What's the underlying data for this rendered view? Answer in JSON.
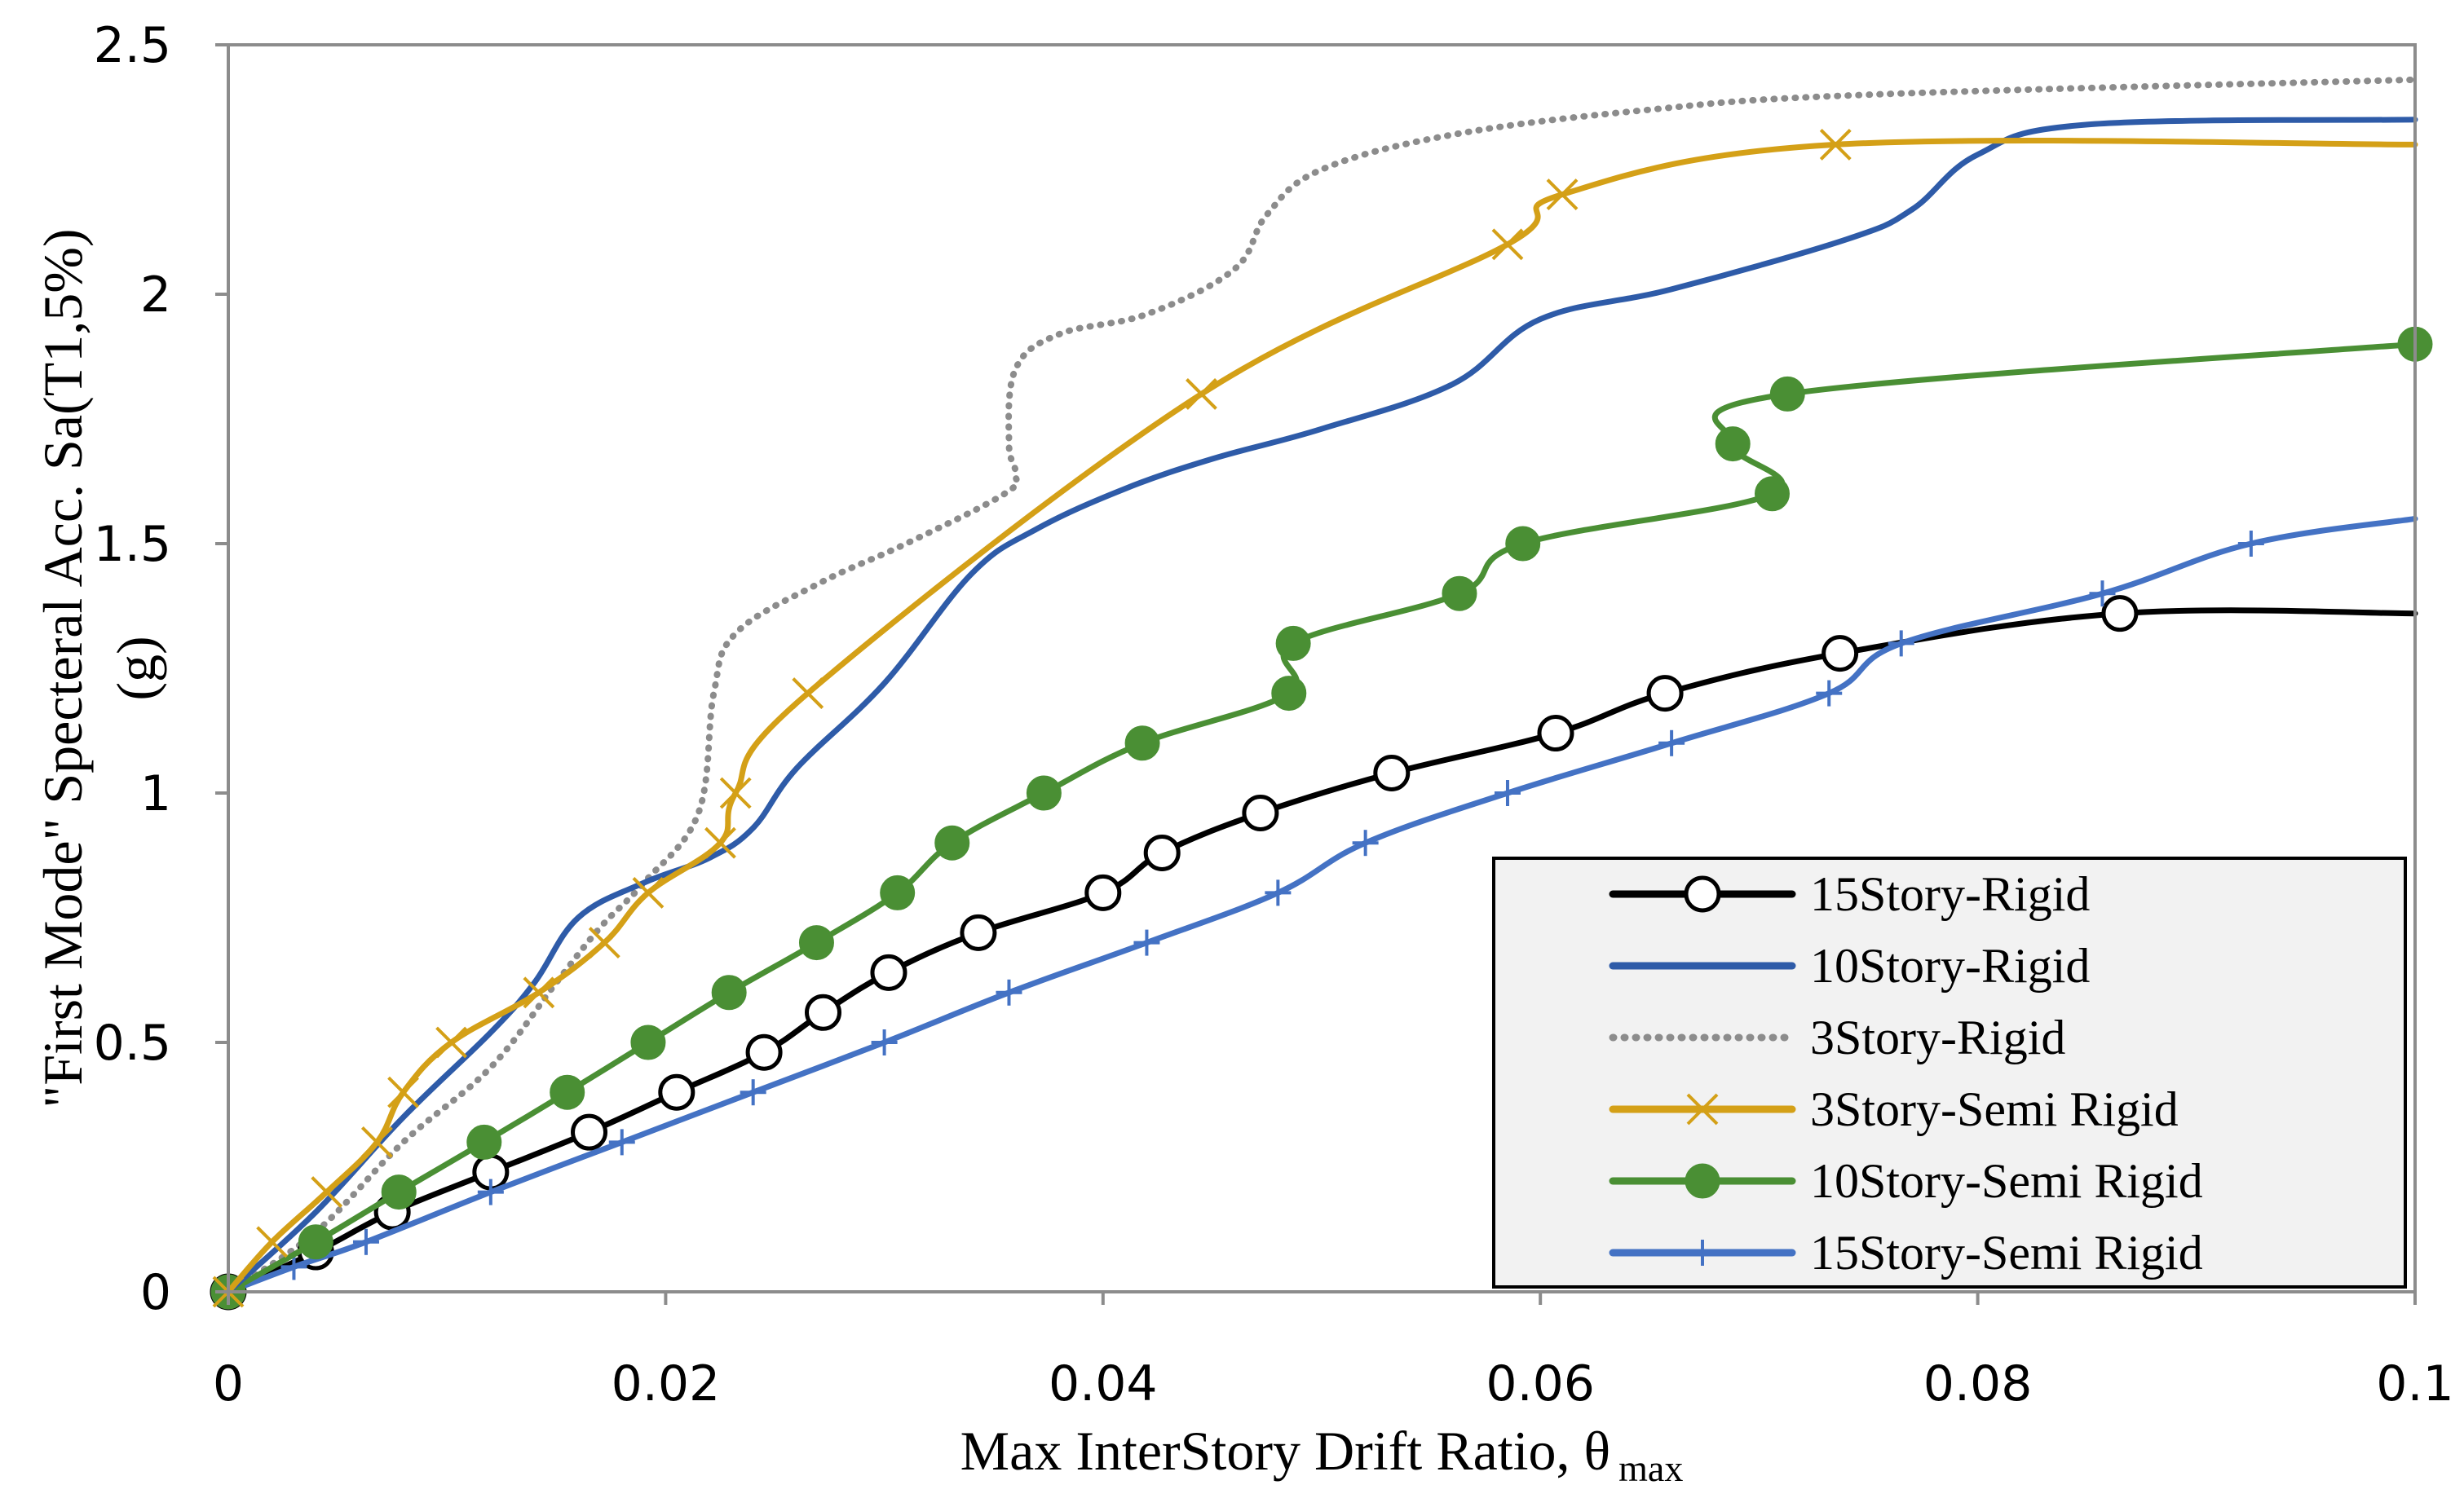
{
  "chart_data": {
    "type": "line",
    "title": "",
    "xlabel": "Max InterStory Drift Ratio, θ",
    "xlabel_subscript": "max",
    "ylabel_line1": "\"First Mode\" Specteral Acc. Sa(T1,5%)",
    "ylabel_line2": "(g)",
    "xlim": [
      0,
      0.1
    ],
    "ylim": [
      0,
      2.5
    ],
    "xticks": [
      0,
      0.02,
      0.04,
      0.06,
      0.08,
      0.1
    ],
    "xtick_labels": [
      "0",
      "0.02",
      "0.04",
      "0.06",
      "0.08",
      "0.1"
    ],
    "yticks": [
      0,
      0.5,
      1,
      1.5,
      2,
      2.5
    ],
    "ytick_labels": [
      "0",
      "0.5",
      "1",
      "1.5",
      "2",
      "2.5"
    ],
    "grid": false,
    "legend_position": "bottom-right",
    "series": [
      {
        "name": "15Story-Rigid",
        "color": "#000000",
        "marker": "open-circle",
        "dash": "solid",
        "points": [
          [
            0,
            0
          ],
          [
            0.004,
            0.08
          ],
          [
            0.0075,
            0.16
          ],
          [
            0.012,
            0.24
          ],
          [
            0.0165,
            0.32
          ],
          [
            0.0205,
            0.4
          ],
          [
            0.0245,
            0.48
          ],
          [
            0.0272,
            0.56
          ],
          [
            0.0302,
            0.64
          ],
          [
            0.0343,
            0.72
          ],
          [
            0.04,
            0.8
          ],
          [
            0.0427,
            0.88
          ],
          [
            0.0472,
            0.96
          ],
          [
            0.0532,
            1.04
          ],
          [
            0.0607,
            1.12
          ],
          [
            0.0657,
            1.2
          ],
          [
            0.0737,
            1.28
          ],
          [
            0.0865,
            1.36
          ],
          [
            0.1,
            1.36
          ]
        ],
        "marker_points": [
          [
            0,
            0
          ],
          [
            0.004,
            0.08
          ],
          [
            0.0075,
            0.16
          ],
          [
            0.012,
            0.24
          ],
          [
            0.0165,
            0.32
          ],
          [
            0.0205,
            0.4
          ],
          [
            0.0245,
            0.48
          ],
          [
            0.0272,
            0.56
          ],
          [
            0.0302,
            0.64
          ],
          [
            0.0343,
            0.72
          ],
          [
            0.04,
            0.8
          ],
          [
            0.0427,
            0.88
          ],
          [
            0.0472,
            0.96
          ],
          [
            0.0532,
            1.04
          ],
          [
            0.0607,
            1.12
          ],
          [
            0.0657,
            1.2
          ],
          [
            0.0737,
            1.28
          ],
          [
            0.0865,
            1.36
          ]
        ]
      },
      {
        "name": "10Story-Rigid",
        "color": "#2e5ba8",
        "marker": "none",
        "dash": "solid",
        "points": [
          [
            0,
            0
          ],
          [
            0.004,
            0.16
          ],
          [
            0.008,
            0.35
          ],
          [
            0.012,
            0.52
          ],
          [
            0.014,
            0.62
          ],
          [
            0.016,
            0.75
          ],
          [
            0.019,
            0.82
          ],
          [
            0.022,
            0.87
          ],
          [
            0.024,
            0.93
          ],
          [
            0.026,
            1.05
          ],
          [
            0.03,
            1.22
          ],
          [
            0.034,
            1.44
          ],
          [
            0.037,
            1.53
          ],
          [
            0.041,
            1.61
          ],
          [
            0.045,
            1.67
          ],
          [
            0.05,
            1.73
          ],
          [
            0.056,
            1.82
          ],
          [
            0.06,
            1.95
          ],
          [
            0.066,
            2.01
          ],
          [
            0.074,
            2.11
          ],
          [
            0.077,
            2.17
          ],
          [
            0.08,
            2.28
          ],
          [
            0.085,
            2.34
          ],
          [
            0.1,
            2.35
          ]
        ],
        "marker_points": []
      },
      {
        "name": "3Story-Rigid",
        "color": "#8c8c8c",
        "marker": "none",
        "dash": "dotted",
        "points": [
          [
            0,
            0
          ],
          [
            0.004,
            0.12
          ],
          [
            0.008,
            0.3
          ],
          [
            0.012,
            0.45
          ],
          [
            0.015,
            0.62
          ],
          [
            0.017,
            0.73
          ],
          [
            0.019,
            0.82
          ],
          [
            0.0215,
            0.96
          ],
          [
            0.0222,
            1.2
          ],
          [
            0.0232,
            1.32
          ],
          [
            0.027,
            1.42
          ],
          [
            0.031,
            1.5
          ],
          [
            0.0355,
            1.6
          ],
          [
            0.036,
            1.64
          ],
          [
            0.0357,
            1.7
          ],
          [
            0.036,
            1.85
          ],
          [
            0.038,
            1.92
          ],
          [
            0.042,
            1.96
          ],
          [
            0.046,
            2.05
          ],
          [
            0.0475,
            2.16
          ],
          [
            0.05,
            2.25
          ],
          [
            0.056,
            2.32
          ],
          [
            0.065,
            2.37
          ],
          [
            0.075,
            2.4
          ],
          [
            0.1,
            2.43
          ]
        ],
        "marker_points": []
      },
      {
        "name": "3Story-Semi Rigid",
        "color": "#d4a017",
        "marker": "x",
        "dash": "solid",
        "points": [
          [
            0,
            0
          ],
          [
            0.002,
            0.1
          ],
          [
            0.0045,
            0.2
          ],
          [
            0.0068,
            0.3
          ],
          [
            0.008,
            0.4
          ],
          [
            0.0102,
            0.5
          ],
          [
            0.0142,
            0.6
          ],
          [
            0.0172,
            0.7
          ],
          [
            0.0192,
            0.8
          ],
          [
            0.0225,
            0.9
          ],
          [
            0.0232,
            1.0
          ],
          [
            0.0265,
            1.2
          ],
          [
            0.0445,
            1.8
          ],
          [
            0.0585,
            2.1
          ],
          [
            0.061,
            2.2
          ],
          [
            0.0735,
            2.3
          ],
          [
            0.1,
            2.3
          ]
        ],
        "marker_points": [
          [
            0,
            0
          ],
          [
            0.002,
            0.1
          ],
          [
            0.0045,
            0.2
          ],
          [
            0.0068,
            0.3
          ],
          [
            0.008,
            0.4
          ],
          [
            0.0102,
            0.5
          ],
          [
            0.0142,
            0.6
          ],
          [
            0.0172,
            0.7
          ],
          [
            0.0192,
            0.8
          ],
          [
            0.0225,
            0.9
          ],
          [
            0.0232,
            1.0
          ],
          [
            0.0265,
            1.2
          ],
          [
            0.0445,
            1.8
          ],
          [
            0.0585,
            2.1
          ],
          [
            0.061,
            2.2
          ],
          [
            0.0735,
            2.3
          ]
        ]
      },
      {
        "name": "10Story-Semi Rigid",
        "color": "#4a8f34",
        "marker": "filled-circle",
        "dash": "solid",
        "points": [
          [
            0,
            0
          ],
          [
            0.004,
            0.1
          ],
          [
            0.0078,
            0.2
          ],
          [
            0.0117,
            0.3
          ],
          [
            0.0155,
            0.4
          ],
          [
            0.0192,
            0.5
          ],
          [
            0.0229,
            0.6
          ],
          [
            0.0269,
            0.7
          ],
          [
            0.0306,
            0.8
          ],
          [
            0.0331,
            0.9
          ],
          [
            0.0373,
            1.0
          ],
          [
            0.0418,
            1.1
          ],
          [
            0.0485,
            1.2
          ],
          [
            0.0487,
            1.3
          ],
          [
            0.0563,
            1.4
          ],
          [
            0.0592,
            1.5
          ],
          [
            0.0706,
            1.6
          ],
          [
            0.0688,
            1.7
          ],
          [
            0.0713,
            1.8
          ],
          [
            0.1,
            1.9
          ]
        ],
        "marker_points": [
          [
            0,
            0
          ],
          [
            0.004,
            0.1
          ],
          [
            0.0078,
            0.2
          ],
          [
            0.0117,
            0.3
          ],
          [
            0.0155,
            0.4
          ],
          [
            0.0192,
            0.5
          ],
          [
            0.0229,
            0.6
          ],
          [
            0.0269,
            0.7
          ],
          [
            0.0306,
            0.8
          ],
          [
            0.0331,
            0.9
          ],
          [
            0.0373,
            1.0
          ],
          [
            0.0418,
            1.1
          ],
          [
            0.0485,
            1.2
          ],
          [
            0.0487,
            1.3
          ],
          [
            0.0563,
            1.4
          ],
          [
            0.0592,
            1.5
          ],
          [
            0.0706,
            1.6
          ],
          [
            0.0688,
            1.7
          ],
          [
            0.0713,
            1.8
          ],
          [
            0.1,
            1.9
          ]
        ]
      },
      {
        "name": "15Story-Semi Rigid",
        "color": "#4472c4",
        "marker": "plus",
        "dash": "solid",
        "points": [
          [
            0,
            0
          ],
          [
            0.003,
            0.05
          ],
          [
            0.0063,
            0.1
          ],
          [
            0.012,
            0.2
          ],
          [
            0.018,
            0.3
          ],
          [
            0.024,
            0.4
          ],
          [
            0.03,
            0.5
          ],
          [
            0.0357,
            0.6
          ],
          [
            0.042,
            0.7
          ],
          [
            0.048,
            0.8
          ],
          [
            0.052,
            0.9
          ],
          [
            0.0585,
            1.0
          ],
          [
            0.066,
            1.1
          ],
          [
            0.0732,
            1.2
          ],
          [
            0.0765,
            1.3
          ],
          [
            0.0857,
            1.4
          ],
          [
            0.0925,
            1.5
          ],
          [
            0.1,
            1.55
          ]
        ],
        "marker_points": [
          [
            0,
            0
          ],
          [
            0.003,
            0.05
          ],
          [
            0.0063,
            0.1
          ],
          [
            0.012,
            0.2
          ],
          [
            0.018,
            0.3
          ],
          [
            0.024,
            0.4
          ],
          [
            0.03,
            0.5
          ],
          [
            0.0357,
            0.6
          ],
          [
            0.042,
            0.7
          ],
          [
            0.048,
            0.8
          ],
          [
            0.052,
            0.9
          ],
          [
            0.0585,
            1.0
          ],
          [
            0.066,
            1.1
          ],
          [
            0.0732,
            1.2
          ],
          [
            0.0765,
            1.3
          ],
          [
            0.0857,
            1.4
          ],
          [
            0.0925,
            1.5
          ]
        ]
      }
    ]
  }
}
